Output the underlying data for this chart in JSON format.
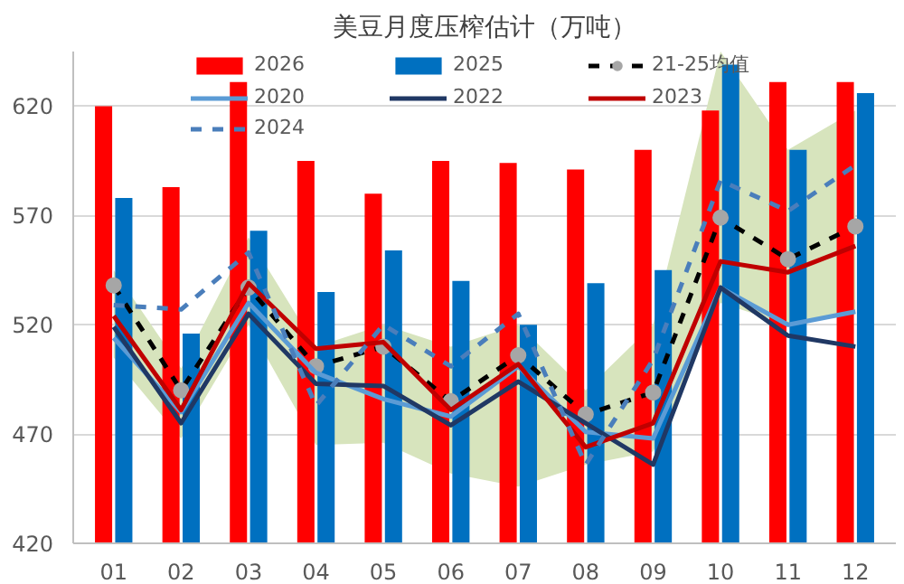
{
  "chart_data": {
    "type": "bar",
    "title": "美豆月度压榨估计（万吨）",
    "categories": [
      "01",
      "02",
      "03",
      "04",
      "05",
      "06",
      "07",
      "08",
      "09",
      "10",
      "11",
      "12"
    ],
    "series": [
      {
        "name": "2026",
        "color": "#ff0000",
        "values": [
          620,
          583,
          631,
          595,
          580,
          595,
          594,
          591,
          600,
          618,
          631,
          631
        ]
      },
      {
        "name": "2025",
        "color": "#0070c0",
        "values": [
          578,
          516,
          563,
          535,
          554,
          540,
          520,
          539,
          545,
          639,
          600,
          626
        ]
      },
      {
        "name": "21-25均值",
        "type": "line",
        "color": "#000000",
        "line_style": "dashed",
        "marker": "circle",
        "values": [
          538,
          490,
          537,
          501,
          510,
          485,
          506,
          479,
          489,
          569,
          550,
          565
        ],
        "lower": [
          505,
          468,
          520,
          465,
          466,
          452,
          446,
          456,
          462,
          530,
          520,
          525
        ],
        "upper": [
          545,
          500,
          560,
          510,
          520,
          510,
          520,
          490,
          520,
          645,
          600,
          618
        ]
      },
      {
        "name": "2020",
        "type": "line",
        "color": "#5b9bd5",
        "line_style": "solid",
        "values": [
          514,
          480,
          530,
          498,
          486,
          478,
          501,
          471,
          468,
          537,
          520,
          526
        ]
      },
      {
        "name": "2022",
        "type": "line",
        "color": "#203864",
        "line_style": "solid",
        "values": [
          519,
          475,
          525,
          493,
          492,
          474,
          494,
          475,
          456,
          537,
          515,
          510
        ]
      },
      {
        "name": "2023",
        "type": "line",
        "color": "#c00000",
        "line_style": "solid",
        "values": [
          524,
          481,
          539,
          509,
          512,
          481,
          502,
          464,
          475,
          549,
          544,
          556
        ]
      },
      {
        "name": "2024",
        "type": "line",
        "color": "#4a7ebb",
        "line_style": "dashed",
        "values": [
          529,
          527,
          553,
          483,
          520,
          501,
          525,
          456,
          504,
          586,
          572,
          593
        ]
      }
    ],
    "ylim": [
      420,
      645
    ],
    "yticks": [
      420,
      470,
      520,
      570,
      620
    ],
    "grid": "y",
    "legend": "top"
  }
}
